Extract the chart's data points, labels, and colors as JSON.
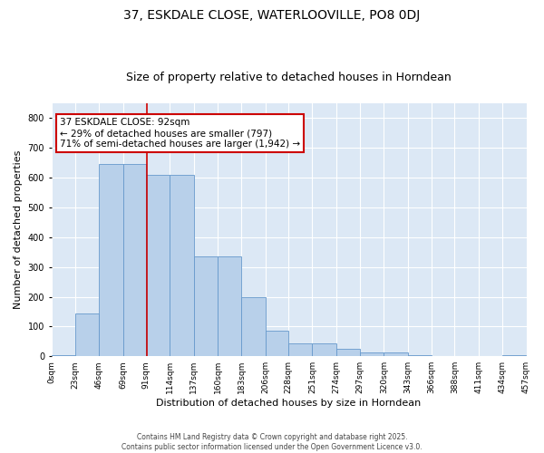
{
  "title": "37, ESKDALE CLOSE, WATERLOOVILLE, PO8 0DJ",
  "subtitle": "Size of property relative to detached houses in Horndean",
  "xlabel": "Distribution of detached houses by size in Horndean",
  "ylabel": "Number of detached properties",
  "bar_values": [
    5,
    145,
    645,
    645,
    610,
    610,
    335,
    335,
    200,
    85,
    42,
    42,
    25,
    12,
    12,
    5,
    0,
    0,
    0,
    3
  ],
  "bin_edges": [
    0,
    23,
    46,
    69,
    91,
    114,
    137,
    160,
    183,
    206,
    228,
    251,
    274,
    297,
    320,
    343,
    366,
    388,
    411,
    434,
    457
  ],
  "tick_labels": [
    "0sqm",
    "23sqm",
    "46sqm",
    "69sqm",
    "91sqm",
    "114sqm",
    "137sqm",
    "160sqm",
    "183sqm",
    "206sqm",
    "228sqm",
    "251sqm",
    "274sqm",
    "297sqm",
    "320sqm",
    "343sqm",
    "366sqm",
    "388sqm",
    "411sqm",
    "434sqm",
    "457sqm"
  ],
  "bar_color": "#b8d0ea",
  "bar_edge_color": "#6699cc",
  "vline_x": 92,
  "vline_color": "#cc0000",
  "annotation_text": "37 ESKDALE CLOSE: 92sqm\n← 29% of detached houses are smaller (797)\n71% of semi-detached houses are larger (1,942) →",
  "annotation_box_color": "#ffffff",
  "annotation_box_edge": "#cc0000",
  "ylim": [
    0,
    850
  ],
  "yticks": [
    0,
    100,
    200,
    300,
    400,
    500,
    600,
    700,
    800
  ],
  "background_color": "#dce8f5",
  "grid_color": "#ffffff",
  "footer_text": "Contains HM Land Registry data © Crown copyright and database right 2025.\nContains public sector information licensed under the Open Government Licence v3.0.",
  "title_fontsize": 10,
  "subtitle_fontsize": 9,
  "axis_label_fontsize": 8,
  "tick_fontsize": 6.5,
  "annotation_fontsize": 7.5,
  "footer_fontsize": 5.5
}
